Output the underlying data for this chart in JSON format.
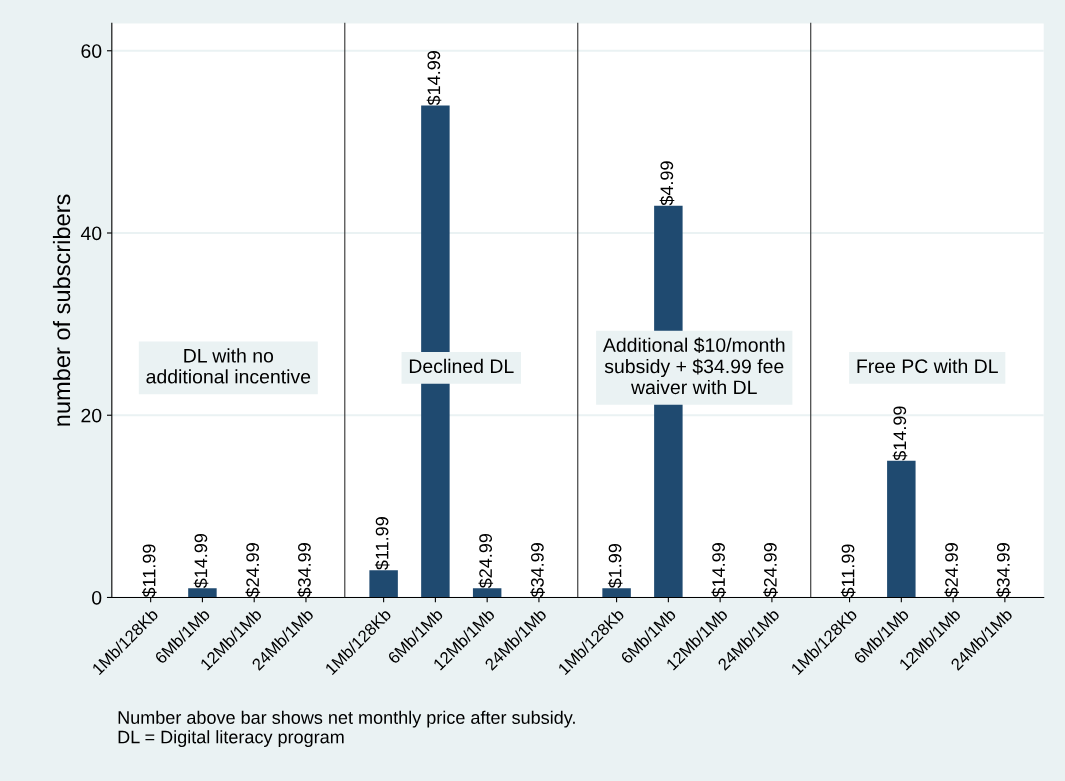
{
  "chart_data": [
    {
      "type": "bar",
      "ylabel": "number of subscribers",
      "categories": [
        "1Mb/128Kb",
        "6Mb/1Mb",
        "12Mb/1Mb",
        "24Mb/1Mb"
      ],
      "values": [
        0,
        1,
        0,
        0
      ],
      "color": "#1f4a70",
      "ylim": [
        0,
        63
      ],
      "yticks": [
        0,
        20,
        40,
        60
      ],
      "grid": "y",
      "annotations": [
        "DL with no\nadditional incentive",
        "Number above bar shows net monthly price after subsidy.\nDL = Digital literacy program",
        {
          "text": "$11.99",
          "x": "1Mb/128Kb",
          "y": 0
        },
        {
          "text": "$14.99",
          "x": "6Mb/1Mb",
          "y": 1
        },
        {
          "text": "$24.99",
          "x": "12Mb/1Mb",
          "y": 0
        },
        {
          "text": "$34.99",
          "x": "24Mb/1Mb",
          "y": 0
        }
      ]
    },
    {
      "type": "bar",
      "categories": [
        "1Mb/128Kb",
        "6Mb/1Mb",
        "12Mb/1Mb",
        "24Mb/1Mb"
      ],
      "values": [
        3,
        54,
        1,
        0
      ],
      "color": "#1f4a70",
      "ylim": [
        0,
        63
      ],
      "yticks": [
        0,
        20,
        40,
        60
      ],
      "grid": "y",
      "tick_labels": "x",
      "annotations": [
        "Declined DL",
        {
          "text": "$11.99",
          "x": "1Mb/128Kb",
          "y": 3
        },
        {
          "text": "$14.99",
          "x": "6Mb/1Mb",
          "y": 54
        },
        {
          "text": "$24.99",
          "x": "12Mb/1Mb",
          "y": 1
        },
        {
          "text": "$34.99",
          "x": "24Mb/1Mb",
          "y": 0
        }
      ]
    },
    {
      "type": "bar",
      "categories": [
        "1Mb/128Kb",
        "6Mb/1Mb",
        "12Mb/1Mb",
        "24Mb/1Mb"
      ],
      "values": [
        1,
        43,
        0,
        0
      ],
      "color": "#1f4a70",
      "ylim": [
        0,
        63
      ],
      "yticks": [
        0,
        20,
        40,
        60
      ],
      "grid": "y",
      "tick_labels": "x",
      "annotations": [
        "Additional $10/month\nsubsidy + $34.99 fee\nwaiver with DL",
        {
          "text": "$1.99",
          "x": "1Mb/128Kb",
          "y": 1
        },
        {
          "text": "$4.99",
          "x": "6Mb/1Mb",
          "y": 43
        },
        {
          "text": "$14.99",
          "x": "12Mb/1Mb",
          "y": 0
        },
        {
          "text": "$24.99",
          "x": "24Mb/1Mb",
          "y": 0
        }
      ]
    },
    {
      "type": "bar",
      "categories": [
        "1Mb/128Kb",
        "6Mb/1Mb",
        "12Mb/1Mb",
        "24Mb/1Mb"
      ],
      "values": [
        0,
        15,
        0,
        0
      ],
      "color": "#1f4a70",
      "ylim": [
        0,
        63
      ],
      "yticks": [
        0,
        20,
        40,
        60
      ],
      "grid": "y",
      "tick_labels": "x",
      "annotations": [
        "Free PC with DL",
        {
          "text": "$11.99",
          "x": "1Mb/128Kb",
          "y": 0
        },
        {
          "text": "$14.99",
          "x": "6Mb/1Mb",
          "y": 15
        },
        {
          "text": "$24.99",
          "x": "12Mb/1Mb",
          "y": 0
        },
        {
          "text": "$34.99",
          "x": "24Mb/1Mb",
          "y": 0
        }
      ]
    }
  ]
}
